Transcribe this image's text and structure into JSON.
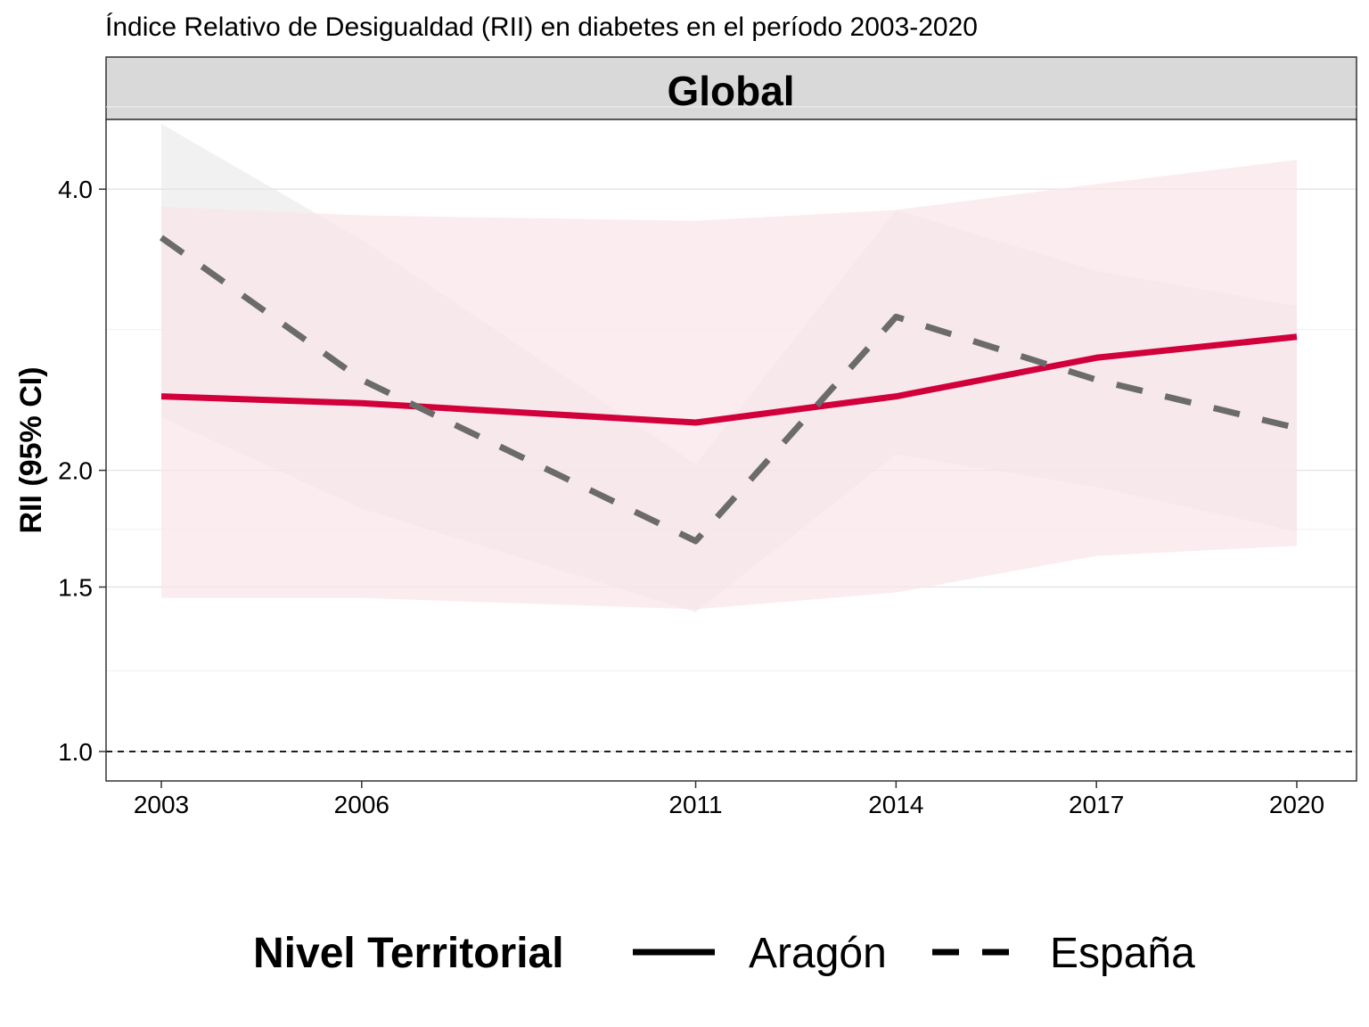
{
  "chart_data": {
    "type": "line",
    "title": "Índice Relativo de Desigualdad (RII) en diabetes en el período 2003-2020",
    "facet": "Global",
    "ylabel": "RII (95% CI)",
    "xlabel": "",
    "x": [
      2003,
      2006,
      2011,
      2014,
      2017,
      2020
    ],
    "x_tick_labels": [
      "2003",
      "2006",
      "2011",
      "2014",
      "2017",
      "2020"
    ],
    "y_scale": "log",
    "ylim": [
      0.93,
      4.75
    ],
    "y_ticks": [
      1.0,
      1.5,
      2.0,
      4.0
    ],
    "y_tick_labels": [
      "1.0",
      "1.5",
      "2.0",
      "4.0"
    ],
    "y_minor_gridlines": [
      1.22,
      1.73,
      2.83,
      4.9
    ],
    "reference_line": 1.0,
    "grid": true,
    "legend": {
      "title": "Nivel Territorial",
      "position": "bottom"
    },
    "series": [
      {
        "name": "Aragón",
        "line": "solid",
        "color": "#d1003a",
        "band_color": "#f9e4ea",
        "values": [
          2.4,
          2.36,
          2.25,
          2.4,
          2.64,
          2.78
        ],
        "lower": [
          1.46,
          1.46,
          1.42,
          1.48,
          1.62,
          1.66
        ],
        "upper": [
          3.83,
          3.75,
          3.7,
          3.8,
          4.05,
          4.3
        ]
      },
      {
        "name": "España",
        "line": "dashed",
        "color": "#6b6b6b",
        "band_color": "#e6e6e6",
        "values": [
          3.55,
          2.5,
          1.68,
          2.92,
          2.5,
          2.22
        ],
        "lower": [
          2.28,
          1.82,
          1.41,
          2.08,
          1.92,
          1.72
        ],
        "upper": [
          4.7,
          3.53,
          2.03,
          3.8,
          3.27,
          3.0
        ]
      }
    ]
  }
}
